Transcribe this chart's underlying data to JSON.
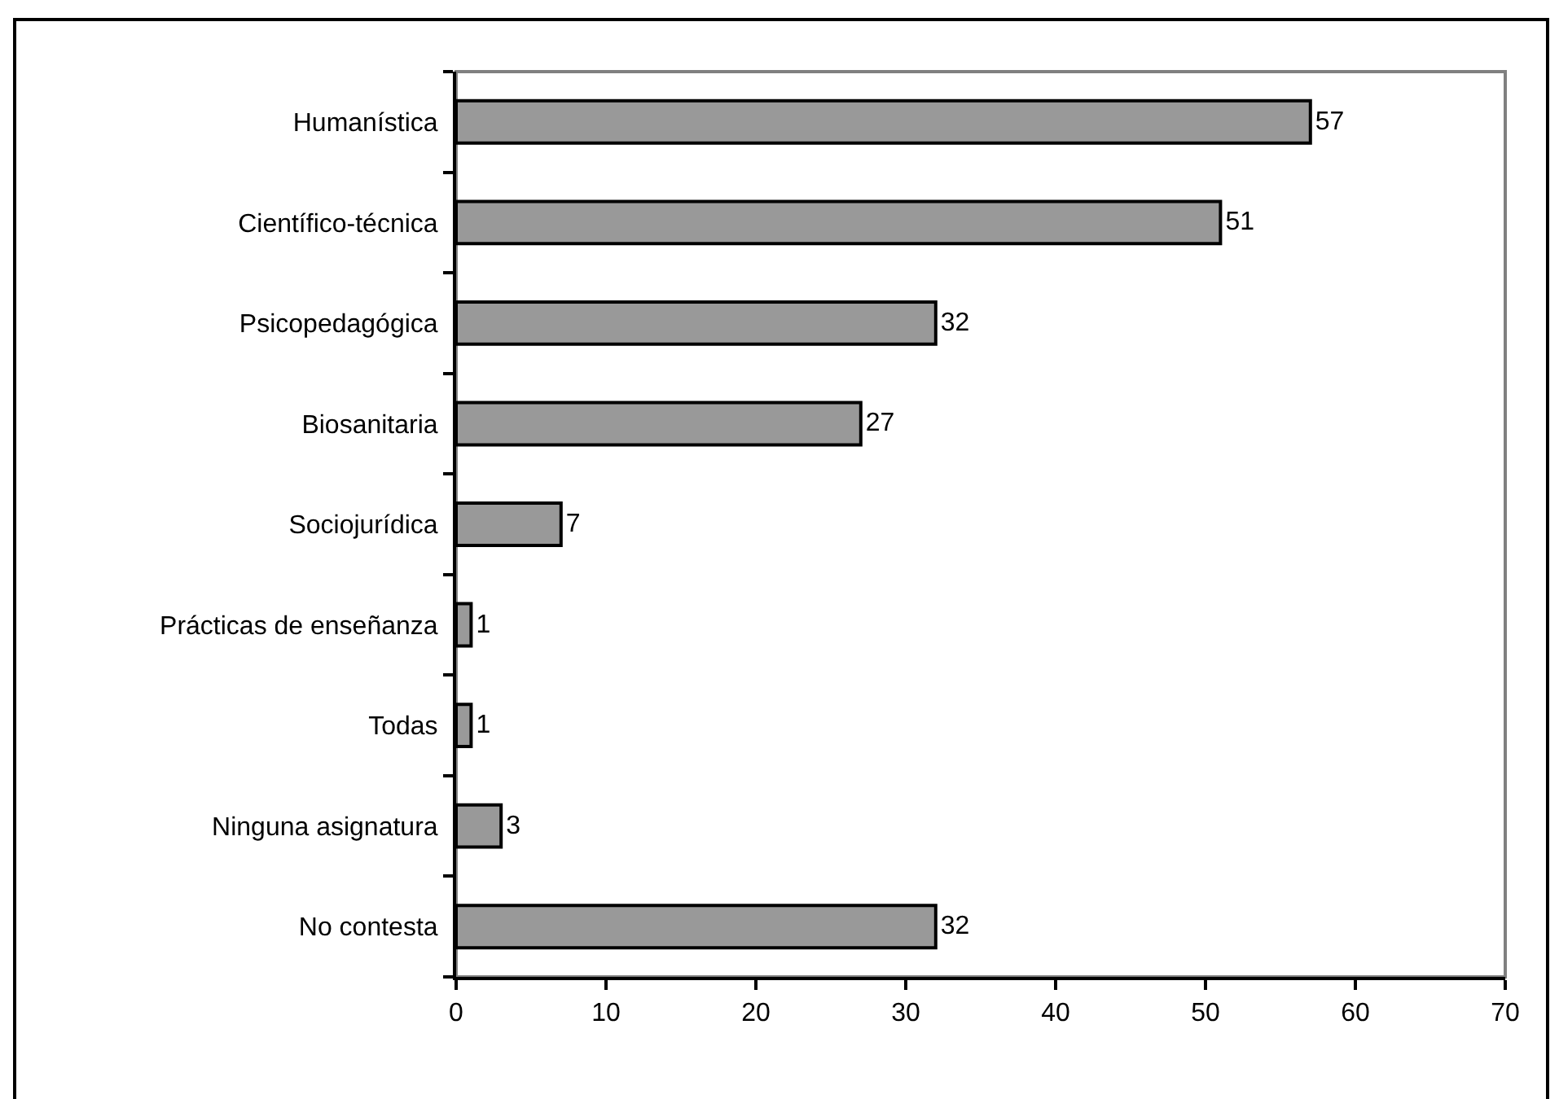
{
  "chart_data": {
    "type": "bar",
    "orientation": "horizontal",
    "categories": [
      "Humanística",
      "Científico-técnica",
      "Psicopedagógica",
      "Biosanitaria",
      "Sociojurídica",
      "Prácticas de enseñanza",
      "Todas",
      "Ninguna asignatura",
      "No contesta"
    ],
    "values": [
      57,
      51,
      32,
      27,
      7,
      1,
      1,
      3,
      32
    ],
    "color": "#999999",
    "xlim": [
      0,
      70
    ],
    "xticks": [
      0,
      10,
      20,
      30,
      40,
      50,
      60,
      70
    ],
    "data_labels": true
  }
}
